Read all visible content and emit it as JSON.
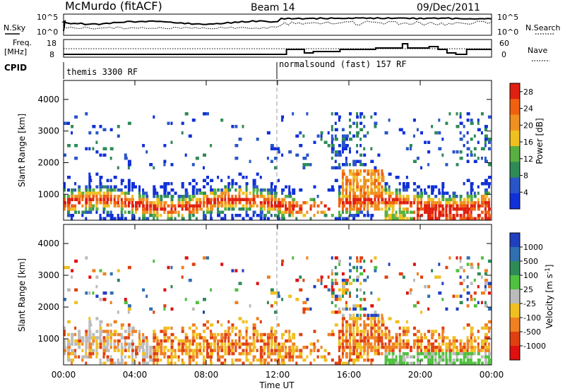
{
  "header": {
    "title": "McMurdo (fitACF)",
    "beam": "Beam 14",
    "date": "09/Dec/2011"
  },
  "top_panels": {
    "nsky": {
      "label": "N.Sky",
      "right_label": "N.Search",
      "left_ticks": [
        "10^5",
        "10^0"
      ],
      "right_ticks": [
        "10^5",
        "10^0"
      ]
    },
    "freq": {
      "label_line1": "Freq.",
      "label_line2": "[MHz]",
      "left_ticks": [
        "18",
        "8"
      ],
      "right_label": "Nave",
      "right_ticks": [
        "60",
        "0"
      ]
    },
    "cpid": {
      "label": "CPID",
      "segments": [
        {
          "text": "themis 3300 RF",
          "start_hour": 0
        },
        {
          "text": "normalsound (fast) 157 RF",
          "start_hour": 12
        }
      ]
    }
  },
  "colors": {
    "power": [
      "#1030d8",
      "#2a55c8",
      "#2e8b57",
      "#58b040",
      "#f0c020",
      "#f09020",
      "#f06010",
      "#e02010"
    ],
    "velocity": [
      "#2040c0",
      "#3070b0",
      "#2e8b57",
      "#50c040",
      "#bbbbbb",
      "#f0c020",
      "#f08020",
      "#e04010",
      "#e01010"
    ]
  },
  "chart_data": [
    {
      "type": "heatmap",
      "name": "power",
      "xlabel": "Time UT",
      "ylabel": "Slant Range [km]",
      "xlim": [
        0,
        24
      ],
      "ylim": [
        180,
        4600
      ],
      "x_ticks": [
        "00:00",
        "04:00",
        "08:00",
        "12:00",
        "16:00",
        "20:00",
        "00:00"
      ],
      "y_ticks": [
        1000,
        2000,
        3000,
        4000
      ],
      "colorbar_label": "Power [dB]",
      "colorbar_ticks": [
        "28",
        "24",
        "20",
        "16",
        "12",
        "8",
        "4"
      ],
      "colorbar_range": [
        0,
        30
      ]
    },
    {
      "type": "heatmap",
      "name": "velocity",
      "xlabel": "Time UT",
      "ylabel": "Slant Range [km]",
      "xlim": [
        0,
        24
      ],
      "ylim": [
        180,
        4600
      ],
      "x_ticks": [
        "00:00",
        "04:00",
        "08:00",
        "12:00",
        "16:00",
        "20:00",
        "00:00"
      ],
      "y_ticks": [
        1000,
        2000,
        3000,
        4000
      ],
      "colorbar_label": "Velocity [m s^-1]",
      "colorbar_ticks": [
        "1000",
        "500",
        "100",
        "25",
        "-25",
        "-100",
        "-500",
        "-1000"
      ]
    }
  ],
  "time_axis_label": "Time UT"
}
